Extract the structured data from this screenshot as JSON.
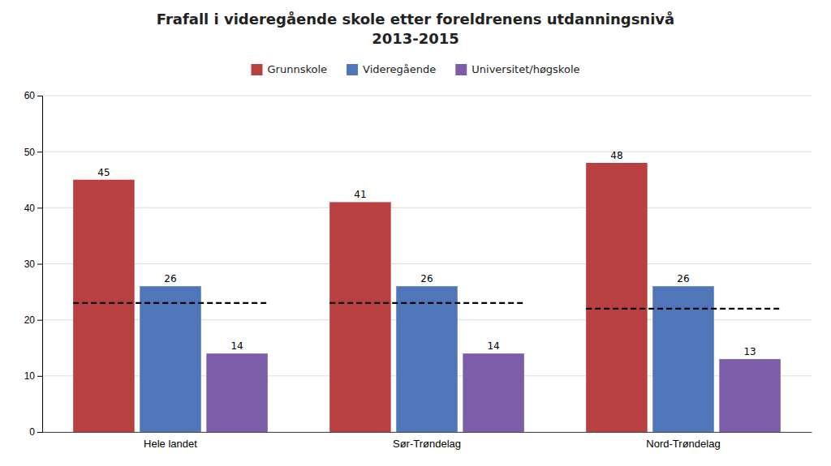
{
  "chart_data": {
    "type": "bar",
    "title": "Frafall i videregående skole etter foreldrenens utdanningsnivå\n2013-2015",
    "categories": [
      "Hele landet",
      "Sør-Trøndelag",
      "Nord-Trøndelag"
    ],
    "series": [
      {
        "name": "Grunnskole",
        "color": "#b94040",
        "values": [
          45,
          41,
          48
        ]
      },
      {
        "name": "Videregående",
        "color": "#4f76b8",
        "values": [
          26,
          26,
          26
        ]
      },
      {
        "name": "Universitet/høgskole",
        "color": "#7b5ea7",
        "values": [
          14,
          14,
          13
        ]
      }
    ],
    "reference_lines": [
      23,
      23,
      22
    ],
    "ylim": [
      0,
      60
    ],
    "yticks": [
      0,
      10,
      20,
      30,
      40,
      50,
      60
    ],
    "grid": true,
    "legend": "top",
    "data_labels": true
  }
}
